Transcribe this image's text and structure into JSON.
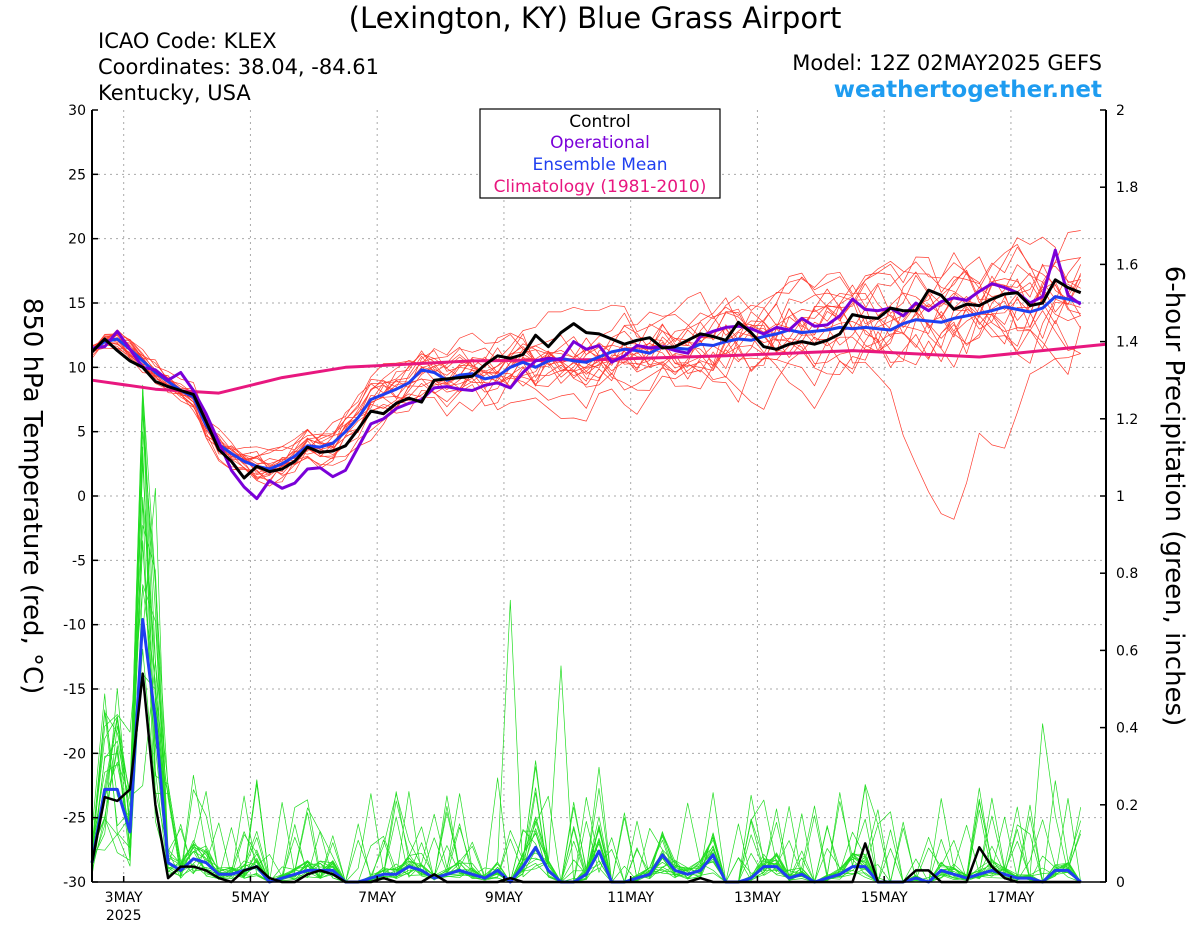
{
  "header": {
    "title": "(Lexington, KY) Blue Grass Airport",
    "icao": "ICAO Code: KLEX",
    "coords": "Coordinates: 38.04, -84.61",
    "region": "Kentucky, USA",
    "model": "Model: 12Z 02MAY2025 GEFS",
    "site": "weathertogether.net"
  },
  "legend": {
    "control": "Control",
    "operational": "Operational",
    "mean": "Ensemble Mean",
    "climo": "Climatology (1981-2010)"
  },
  "colors": {
    "control": "#000000",
    "operational": "#7a00d8",
    "mean": "#1f3ff0",
    "climo": "#e8177f",
    "members_temp": "#ff3b2f",
    "members_precip": "#22dd22",
    "site": "#1e9cf0"
  },
  "chart_data": {
    "type": "line",
    "ylabel": "850 hPa Temperature (red, °C)",
    "y2label": "6-hour Precipitation (green, inches)",
    "ylim": [
      -30,
      30
    ],
    "y2lim": [
      0,
      2
    ],
    "yticks": [
      30,
      25,
      20,
      15,
      10,
      5,
      0,
      -5,
      -10,
      -15,
      -20,
      -25,
      -30
    ],
    "y2ticks": [
      2,
      1.8,
      1.6,
      1.4,
      1.2,
      1,
      0.8,
      0.6,
      0.4,
      0.2,
      0
    ],
    "xlim": [
      0,
      16
    ],
    "x_ticks": [
      {
        "x": 0.5,
        "label": "3MAY"
      },
      {
        "x": 2.5,
        "label": "5MAY"
      },
      {
        "x": 4.5,
        "label": "7MAY"
      },
      {
        "x": 6.5,
        "label": "9MAY"
      },
      {
        "x": 8.5,
        "label": "11MAY"
      },
      {
        "x": 10.5,
        "label": "13MAY"
      },
      {
        "x": 12.5,
        "label": "15MAY"
      },
      {
        "x": 14.5,
        "label": "17MAY"
      }
    ],
    "x_year_label": "2025",
    "grid": true,
    "climatology": [
      [
        0,
        9.0
      ],
      [
        1,
        8.3
      ],
      [
        2,
        8.0
      ],
      [
        3,
        9.2
      ],
      [
        4,
        10.0
      ],
      [
        6,
        10.5
      ],
      [
        8,
        10.6
      ],
      [
        10,
        10.9
      ],
      [
        12,
        11.3
      ],
      [
        14,
        10.8
      ],
      [
        16,
        11.8
      ]
    ],
    "control_temp": [
      11.2,
      12.2,
      11.3,
      10.5,
      10.0,
      8.9,
      8.5,
      8.2,
      7.9,
      5.8,
      3.6,
      2.7,
      1.4,
      2.3,
      1.9,
      2.1,
      2.7,
      3.8,
      3.4,
      3.5,
      3.9,
      5.2,
      6.6,
      6.4,
      7.2,
      7.6,
      7.3,
      9.0,
      9.1,
      9.2,
      9.3,
      10.2,
      10.9,
      10.7,
      11.0,
      12.5,
      11.6,
      12.7,
      13.4,
      12.7,
      12.6,
      12.2,
      11.8,
      12.1,
      12.3,
      11.5,
      11.6,
      12.1,
      12.6,
      12.4,
      12.1,
      13.5,
      12.7,
      11.6,
      11.4,
      11.8,
      12.0,
      11.8,
      12.1,
      12.6,
      14.1,
      13.9,
      13.8,
      14.6,
      14.4,
      14.4,
      16.0,
      15.6,
      14.5,
      14.9,
      14.8,
      15.3,
      15.7,
      15.8,
      14.8,
      15.0,
      16.8,
      16.2,
      15.8
    ],
    "operational_temp": [
      11.5,
      11.6,
      12.8,
      11.4,
      10.0,
      9.8,
      9.0,
      9.6,
      8.2,
      6.4,
      4.2,
      2.0,
      0.7,
      -0.2,
      1.2,
      0.6,
      1.0,
      2.1,
      2.2,
      1.5,
      2.0,
      3.8,
      5.6,
      6.0,
      6.8,
      7.2,
      7.5,
      8.4,
      8.5,
      8.3,
      8.2,
      8.6,
      8.8,
      8.4,
      9.6,
      10.5,
      10.7,
      10.6,
      12.0,
      11.4,
      11.7,
      10.4,
      10.9,
      11.7,
      11.5,
      11.6,
      11.3,
      11.1,
      12.4,
      12.8,
      13.1,
      13.2,
      13.0,
      12.6,
      13.1,
      12.9,
      13.8,
      13.2,
      13.3,
      14.0,
      15.3,
      14.5,
      14.4,
      14.6,
      14.0,
      15.0,
      14.4,
      15.1,
      15.4,
      15.2,
      15.9,
      16.5,
      16.2,
      15.8,
      15.0,
      15.5,
      19.1,
      15.6,
      14.9
    ],
    "mean_temp": [
      11.3,
      12.0,
      12.2,
      11.4,
      10.5,
      9.6,
      8.9,
      8.2,
      7.7,
      5.5,
      4.0,
      3.3,
      2.7,
      2.3,
      2.1,
      2.5,
      3.1,
      3.9,
      3.8,
      4.1,
      5.0,
      6.1,
      7.5,
      7.9,
      8.3,
      8.8,
      9.8,
      9.6,
      9.0,
      9.4,
      9.5,
      9.1,
      9.3,
      10.0,
      10.4,
      10.0,
      10.5,
      10.7,
      10.5,
      10.4,
      10.8,
      11.2,
      11.4,
      11.3,
      11.1,
      11.6,
      11.5,
      11.4,
      11.8,
      11.7,
      12.0,
      12.2,
      12.1,
      12.4,
      12.6,
      12.9,
      12.7,
      12.8,
      12.9,
      13.1,
      13.0,
      13.1,
      13.0,
      12.9,
      13.4,
      13.7,
      13.6,
      13.5,
      13.8,
      14.0,
      14.2,
      14.4,
      14.7,
      14.5,
      14.3,
      14.6,
      15.5,
      15.3,
      15.0
    ],
    "control_precip": [
      0.05,
      0.22,
      0.21,
      0.24,
      0.54,
      0.2,
      0.01,
      0.04,
      0.04,
      0.03,
      0.01,
      0.0,
      0.03,
      0.04,
      0.01,
      0.0,
      0.0,
      0.02,
      0.03,
      0.02,
      0.0,
      0.0,
      0.0,
      0.01,
      0.0,
      0.0,
      0.0,
      0.02,
      0.0,
      0.0,
      0.0,
      0.0,
      0.0,
      0.01,
      0.0,
      0.0,
      0.0,
      0.0,
      0.0,
      0.0,
      0.0,
      0.0,
      0.0,
      0.0,
      0.0,
      0.0,
      0.0,
      0.0,
      0.01,
      0.0,
      0.0,
      0.0,
      0.0,
      0.0,
      0.0,
      0.0,
      0.0,
      0.0,
      0.0,
      0.0,
      0.0,
      0.1,
      0.0,
      0.0,
      0.0,
      0.03,
      0.03,
      0.0,
      0.0,
      0.0,
      0.09,
      0.04,
      0.01,
      0.0,
      0.0,
      0.0,
      0.0,
      0.0,
      0.0
    ],
    "mean_precip": [
      0.05,
      0.24,
      0.24,
      0.13,
      0.68,
      0.42,
      0.05,
      0.03,
      0.06,
      0.05,
      0.02,
      0.02,
      0.03,
      0.04,
      0.0,
      0.01,
      0.02,
      0.03,
      0.03,
      0.03,
      0.0,
      0.0,
      0.01,
      0.02,
      0.02,
      0.04,
      0.03,
      0.01,
      0.02,
      0.03,
      0.02,
      0.01,
      0.03,
      0.0,
      0.04,
      0.09,
      0.03,
      0.0,
      0.0,
      0.02,
      0.08,
      0.0,
      0.0,
      0.01,
      0.02,
      0.07,
      0.03,
      0.02,
      0.03,
      0.07,
      0.0,
      0.0,
      0.01,
      0.04,
      0.04,
      0.01,
      0.02,
      0.0,
      0.01,
      0.02,
      0.04,
      0.04,
      0.0,
      0.0,
      0.0,
      0.01,
      0.0,
      0.03,
      0.02,
      0.01,
      0.02,
      0.03,
      0.02,
      0.01,
      0.01,
      0.0,
      0.03,
      0.03,
      0.0
    ]
  }
}
